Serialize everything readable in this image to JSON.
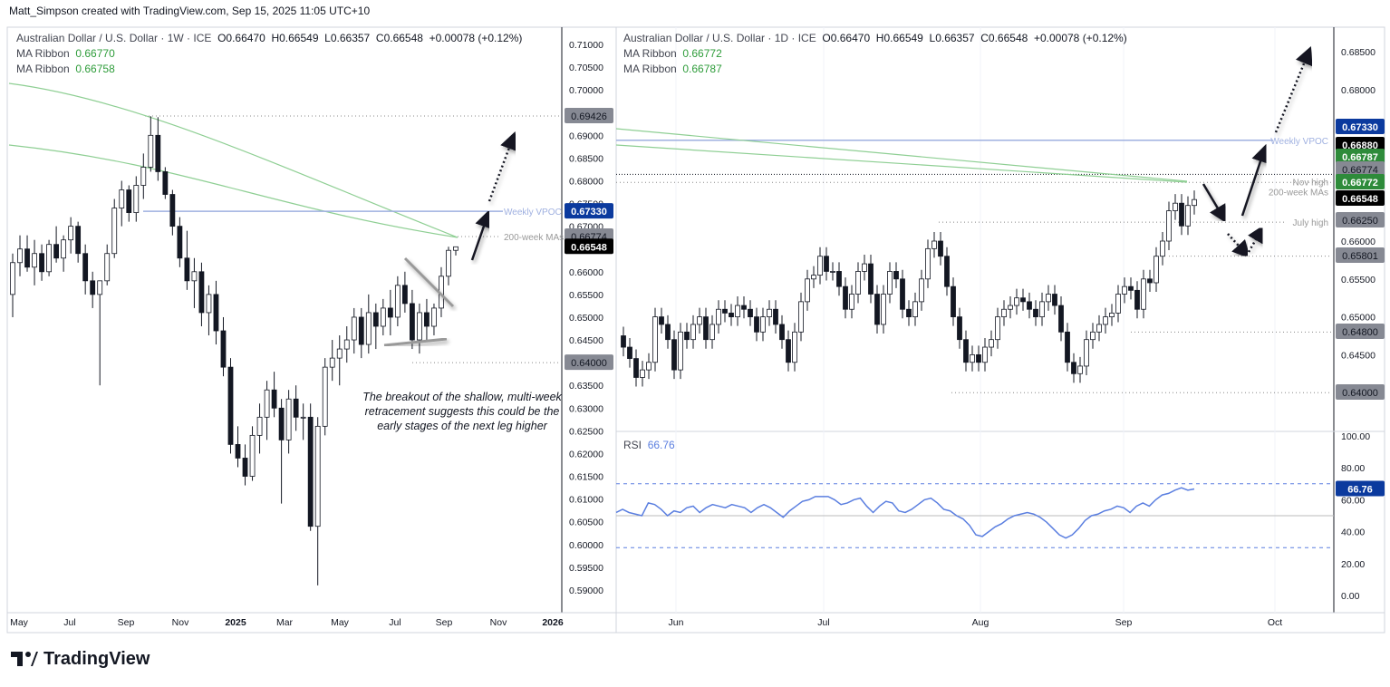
{
  "header": {
    "credit": "Matt_Simpson created with TradingView.com, Sep 15, 2025 11:05 UTC+10"
  },
  "colors": {
    "up": "#ffffff",
    "down": "#131722",
    "ma": "#8fcf94",
    "vpoc": "#9fb0e0",
    "rsi": "#5b7fe0",
    "vpoc_label": "#0b3a9e",
    "green_label": "#2e8b3a",
    "gray_label": "#868993"
  },
  "weekly": {
    "title": "Australian Dollar / U.S. Dollar · 1W · ICE",
    "o": "O0.66470",
    "h": "H0.66549",
    "l": "L0.66357",
    "c": "C0.66548",
    "chg": "+0.00078 (+0.12%)",
    "ma1_label": "MA Ribbon",
    "ma1": "0.66770",
    "ma2_label": "MA Ribbon",
    "ma2": "0.66758",
    "y_ticks": [
      "0.71000",
      "0.70500",
      "0.70000",
      "0.69000",
      "0.68500",
      "0.68000",
      "0.67500",
      "0.67000",
      "0.66000",
      "0.65500",
      "0.65000",
      "0.64500",
      "0.63500",
      "0.63000",
      "0.62500",
      "0.62000",
      "0.61500",
      "0.61000",
      "0.60500",
      "0.60000",
      "0.59500",
      "0.59000"
    ],
    "x_ticks": [
      "May",
      "Jul",
      "Sep",
      "Nov",
      "2025",
      "Mar",
      "May",
      "Jul",
      "Sep",
      "Nov",
      "2026"
    ],
    "price_labels": [
      {
        "v": "0.69426",
        "c": "gray"
      },
      {
        "v": "0.67330",
        "c": "blue"
      },
      {
        "v": "0.66774",
        "c": "gray"
      },
      {
        "v": "0.66548",
        "c": "black"
      },
      {
        "v": "0.64000",
        "c": "gray"
      }
    ],
    "line_labels": {
      "vpoc": "Weekly VPOC",
      "ma": "200-week MAs"
    },
    "note": "The breakout of the shallow, multi-week retracement suggests this could be the early stages of the next leg higher",
    "candles": [
      [
        0.655,
        0.664,
        0.65,
        0.662
      ],
      [
        0.662,
        0.668,
        0.659,
        0.665
      ],
      [
        0.665,
        0.668,
        0.66,
        0.661
      ],
      [
        0.661,
        0.667,
        0.657,
        0.664
      ],
      [
        0.664,
        0.666,
        0.658,
        0.66
      ],
      [
        0.66,
        0.667,
        0.659,
        0.666
      ],
      [
        0.666,
        0.67,
        0.662,
        0.663
      ],
      [
        0.663,
        0.668,
        0.66,
        0.667
      ],
      [
        0.667,
        0.672,
        0.664,
        0.67
      ],
      [
        0.67,
        0.671,
        0.662,
        0.664
      ],
      [
        0.664,
        0.666,
        0.655,
        0.658
      ],
      [
        0.658,
        0.66,
        0.652,
        0.655
      ],
      [
        0.655,
        0.658,
        0.635,
        0.658
      ],
      [
        0.658,
        0.666,
        0.657,
        0.664
      ],
      [
        0.664,
        0.676,
        0.663,
        0.674
      ],
      [
        0.674,
        0.68,
        0.67,
        0.678
      ],
      [
        0.678,
        0.679,
        0.671,
        0.673
      ],
      [
        0.673,
        0.681,
        0.671,
        0.679
      ],
      [
        0.679,
        0.686,
        0.676,
        0.683
      ],
      [
        0.683,
        0.6942,
        0.682,
        0.69
      ],
      [
        0.69,
        0.694,
        0.68,
        0.682
      ],
      [
        0.682,
        0.683,
        0.676,
        0.677
      ],
      [
        0.677,
        0.678,
        0.668,
        0.67
      ],
      [
        0.67,
        0.672,
        0.661,
        0.663
      ],
      [
        0.663,
        0.669,
        0.656,
        0.658
      ],
      [
        0.658,
        0.663,
        0.652,
        0.66
      ],
      [
        0.66,
        0.662,
        0.648,
        0.651
      ],
      [
        0.651,
        0.657,
        0.646,
        0.655
      ],
      [
        0.655,
        0.658,
        0.644,
        0.647
      ],
      [
        0.647,
        0.65,
        0.637,
        0.639
      ],
      [
        0.639,
        0.641,
        0.62,
        0.622
      ],
      [
        0.622,
        0.626,
        0.617,
        0.619
      ],
      [
        0.619,
        0.622,
        0.613,
        0.615
      ],
      [
        0.615,
        0.626,
        0.614,
        0.624
      ],
      [
        0.624,
        0.631,
        0.62,
        0.628
      ],
      [
        0.628,
        0.636,
        0.623,
        0.634
      ],
      [
        0.634,
        0.638,
        0.628,
        0.63
      ],
      [
        0.63,
        0.632,
        0.609,
        0.623
      ],
      [
        0.623,
        0.634,
        0.62,
        0.632
      ],
      [
        0.632,
        0.635,
        0.625,
        0.628
      ],
      [
        0.628,
        0.631,
        0.623,
        0.628
      ],
      [
        0.628,
        0.631,
        0.603,
        0.604
      ],
      [
        0.604,
        0.628,
        0.591,
        0.626
      ],
      [
        0.626,
        0.641,
        0.624,
        0.639
      ],
      [
        0.639,
        0.645,
        0.636,
        0.641
      ],
      [
        0.641,
        0.646,
        0.635,
        0.643
      ],
      [
        0.643,
        0.648,
        0.64,
        0.645
      ],
      [
        0.645,
        0.652,
        0.642,
        0.65
      ],
      [
        0.65,
        0.652,
        0.641,
        0.644
      ],
      [
        0.644,
        0.655,
        0.642,
        0.651
      ],
      [
        0.651,
        0.653,
        0.643,
        0.648
      ],
      [
        0.648,
        0.654,
        0.646,
        0.652
      ],
      [
        0.652,
        0.656,
        0.646,
        0.65
      ],
      [
        0.65,
        0.659,
        0.648,
        0.657
      ],
      [
        0.657,
        0.66,
        0.651,
        0.653
      ],
      [
        0.653,
        0.656,
        0.643,
        0.645
      ],
      [
        0.645,
        0.653,
        0.642,
        0.651
      ],
      [
        0.651,
        0.654,
        0.645,
        0.648
      ],
      [
        0.648,
        0.653,
        0.646,
        0.652
      ],
      [
        0.652,
        0.661,
        0.65,
        0.659
      ],
      [
        0.659,
        0.6655,
        0.657,
        0.6647
      ],
      [
        0.6647,
        0.66549,
        0.66357,
        0.66548
      ]
    ]
  },
  "daily": {
    "title": "Australian Dollar / U.S. Dollar · 1D · ICE",
    "o": "O0.66470",
    "h": "H0.66549",
    "l": "L0.66357",
    "c": "C0.66548",
    "chg": "+0.00078 (+0.12%)",
    "ma1_label": "MA Ribbon",
    "ma1": "0.66772",
    "ma2_label": "MA Ribbon",
    "ma2": "0.66787",
    "y_ticks": [
      "0.68500",
      "0.68000",
      "0.66000",
      "0.65500",
      "0.65000",
      "0.64500"
    ],
    "x_ticks": [
      "Jun",
      "Jul",
      "Aug",
      "Sep",
      "Oct"
    ],
    "price_labels": [
      {
        "v": "0.67330",
        "c": "blue"
      },
      {
        "v": "0.66880",
        "c": "black"
      },
      {
        "v": "0.66787",
        "c": "green"
      },
      {
        "v": "0.66774",
        "c": "gray"
      },
      {
        "v": "0.66772",
        "c": "green"
      },
      {
        "v": "0.66548",
        "c": "black"
      },
      {
        "v": "0.66250",
        "c": "gray"
      },
      {
        "v": "0.65801",
        "c": "gray"
      },
      {
        "v": "0.64800",
        "c": "gray"
      },
      {
        "v": "0.64000",
        "c": "gray"
      }
    ],
    "line_labels": {
      "vpoc": "Weekly VPOC",
      "nov": "Nov high",
      "ma": "200-week MAs",
      "july": "July high"
    },
    "closes": [
      0.646,
      0.6445,
      0.642,
      0.643,
      0.644,
      0.65,
      0.649,
      0.647,
      0.643,
      0.648,
      0.647,
      0.649,
      0.65,
      0.647,
      0.649,
      0.651,
      0.6505,
      0.65,
      0.6515,
      0.651,
      0.65,
      0.648,
      0.65,
      0.651,
      0.649,
      0.647,
      0.644,
      0.648,
      0.652,
      0.655,
      0.6555,
      0.658,
      0.656,
      0.656,
      0.654,
      0.651,
      0.653,
      0.656,
      0.657,
      0.653,
      0.649,
      0.653,
      0.656,
      0.655,
      0.651,
      0.65,
      0.652,
      0.655,
      0.659,
      0.66,
      0.658,
      0.654,
      0.65,
      0.647,
      0.644,
      0.645,
      0.644,
      0.646,
      0.647,
      0.65,
      0.651,
      0.6515,
      0.6525,
      0.652,
      0.651,
      0.65,
      0.652,
      0.653,
      0.6515,
      0.648,
      0.644,
      0.6425,
      0.6435,
      0.647,
      0.648,
      0.649,
      0.65,
      0.6505,
      0.653,
      0.654,
      0.6535,
      0.651,
      0.655,
      0.6545,
      0.658,
      0.66,
      0.664,
      0.665,
      0.662,
      0.6647,
      0.66548
    ],
    "rsi": {
      "label": "RSI",
      "value": "66.76",
      "y_ticks": [
        "100.00",
        "80.00",
        "60.00",
        "40.00",
        "20.00",
        "0.00"
      ],
      "values": [
        52,
        54,
        52,
        51,
        50,
        58,
        57,
        54,
        50,
        53,
        52,
        55,
        56,
        52,
        55,
        57,
        56,
        55,
        57,
        56,
        55,
        52,
        55,
        57,
        55,
        52,
        49,
        53,
        56,
        59,
        60,
        62,
        62,
        62,
        60,
        57,
        58,
        60,
        61,
        56,
        52,
        56,
        59,
        58,
        53,
        52,
        54,
        57,
        60,
        61,
        58,
        54,
        53,
        50,
        48,
        44,
        38,
        37,
        40,
        43,
        45,
        48,
        50,
        51,
        52,
        51,
        49,
        46,
        42,
        38,
        36,
        38,
        42,
        47,
        50,
        51,
        53,
        54,
        56,
        55,
        52,
        56,
        58,
        56,
        60,
        63,
        64,
        66,
        67.5,
        66,
        66.76
      ]
    }
  },
  "logo": {
    "text": "TradingView"
  }
}
